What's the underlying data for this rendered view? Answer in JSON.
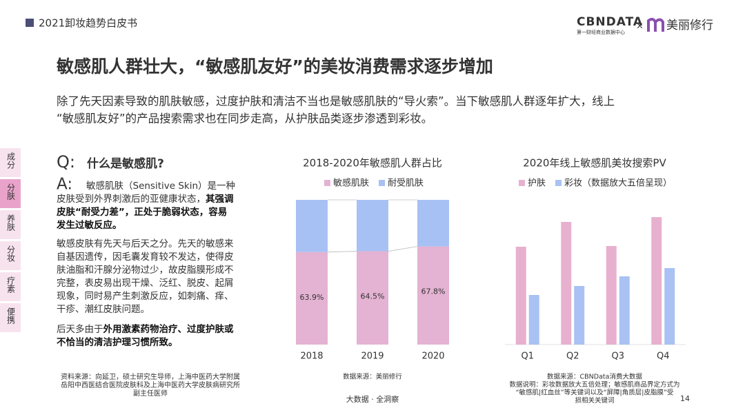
{
  "header": {
    "report": "2021卸妆趋势白皮书",
    "logo_main": "CBNDATA",
    "logo_sub": "第一财经商业数据中心",
    "logo_sep": "×",
    "partner": "美丽修行"
  },
  "title": "敏感肌人群壮大，“敏感肌友好”的美妆消费需求逐步增加",
  "intro": [
    "除了先天因素导致的肌肤敏感，过度护肤和清洁不当也是敏感肌肤的“导火索”。当下敏感肌人群逐年扩大，线上",
    "“敏感肌友好”的产品搜索需求也在同步走高，从护肤品类逐步渗透到彩妆。"
  ],
  "tabs": {
    "items": [
      "成分",
      "分肤",
      "养肤",
      "分妆",
      "疗素",
      "便携"
    ],
    "active": 1
  },
  "qa": {
    "q_mark": "Q:",
    "question": "什么是敏感肌?",
    "a_mark": "A:",
    "paragraphs": [
      [
        [
          {
            "text": "敏感肌肤（Sensitive Skin）是一种",
            "bold": false
          }
        ],
        [
          {
            "text": "皮肤受到外界刺激后的亚健康状态，",
            "bold": false
          },
          {
            "text": "其强调",
            "bold": true
          }
        ],
        [
          {
            "text": "皮肤“耐受力差”，正处于脆弱状态，容易",
            "bold": true
          }
        ],
        [
          {
            "text": "发生过敏反应。",
            "bold": true
          }
        ]
      ],
      [
        [
          {
            "text": "敏感皮肤有先天与后天之分。先天的敏感来",
            "bold": false
          }
        ],
        [
          {
            "text": "自基因遗传，因毛囊发育较不发达，使得皮",
            "bold": false
          }
        ],
        [
          {
            "text": "肤油脂和汗腺分泌物过少，故皮脂膜形成不",
            "bold": false
          }
        ],
        [
          {
            "text": "完整，表皮易出现干燥、泛红、脱皮、起屑",
            "bold": false
          }
        ],
        [
          {
            "text": "现象，同时易产生刺激反应，如刺痛、痒、",
            "bold": false
          }
        ],
        [
          {
            "text": "干疹、潮红皮肤问题。",
            "bold": false
          }
        ]
      ],
      [
        [
          {
            "text": "后天多由于",
            "bold": false
          },
          {
            "text": "外用激素药物治疗、过度护肤或",
            "bold": true
          }
        ],
        [
          {
            "text": "不恰当的清洁护理习惯所致。",
            "bold": true
          }
        ]
      ]
    ],
    "source": [
      "资料来源：向延卫，硕士研究生导师，上海中医药大学附属",
      "岳阳中西医结合医院皮肤科及上海中医药大学皮肤病研究所",
      "副主任医师"
    ]
  },
  "chart_data": [
    {
      "type": "bar",
      "stacked": true,
      "title": "2018-2020年敏感肌人群占比",
      "categories": [
        "2018",
        "2019",
        "2020"
      ],
      "series": [
        {
          "name": "敏感肌肤",
          "color": "#e4b2d2",
          "values": [
            63.9,
            64.5,
            67.8
          ],
          "value_labels": [
            "63.9%",
            "64.5%",
            "67.8%"
          ]
        },
        {
          "name": "耐受肌肤",
          "color": "#a8c1f4",
          "values": [
            36.1,
            35.5,
            32.2
          ]
        }
      ],
      "ylim": [
        0,
        100
      ],
      "source": [
        "数据来源：美丽修行"
      ]
    },
    {
      "type": "bar",
      "stacked": false,
      "title": "2020年线上敏感肌美妆搜索PV",
      "categories": [
        "Q1",
        "Q2",
        "Q3",
        "Q4"
      ],
      "series": [
        {
          "name": "护肤",
          "color": "#e8b0cf",
          "values": [
            142,
            178,
            143,
            185
          ]
        },
        {
          "name": "彩妆（数据放大五倍呈现）",
          "color": "#a9c2f3",
          "values": [
            72,
            85,
            99,
            111
          ]
        }
      ],
      "ylim": [
        0,
        200
      ],
      "source": [
        "数据来源：CBNData消费大数据",
        "数据说明：彩妆数据放大五倍处理；敏感肌商品界定方式为",
        "“敏感肌|红血丝”等关键词以及“屏障|角质层|皮脂膜”受",
        "损相关关键词"
      ]
    }
  ],
  "footer": {
    "tagline": "大数据 · 全洞察",
    "page": "14"
  }
}
